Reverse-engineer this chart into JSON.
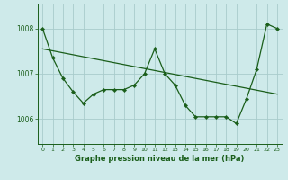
{
  "xlabel": "Graphe pression niveau de la mer (hPa)",
  "background_color": "#ceeaea",
  "grid_color": "#a8cccc",
  "line_color": "#1a5e1a",
  "x": [
    0,
    1,
    2,
    3,
    4,
    5,
    6,
    7,
    8,
    9,
    10,
    11,
    12,
    13,
    14,
    15,
    16,
    17,
    18,
    19,
    20,
    21,
    22,
    23
  ],
  "y": [
    1008.0,
    1007.35,
    1006.9,
    1006.6,
    1006.35,
    1006.55,
    1006.65,
    1006.65,
    1006.65,
    1006.75,
    1007.0,
    1007.55,
    1007.0,
    1006.75,
    1006.3,
    1006.05,
    1006.05,
    1006.05,
    1006.05,
    1005.9,
    1006.45,
    1007.1,
    1008.1,
    1008.0
  ],
  "trend_x": [
    0,
    23
  ],
  "trend_y": [
    1007.55,
    1006.55
  ],
  "ylim_min": 1005.45,
  "ylim_max": 1008.55,
  "ytick_positions": [
    1006,
    1007,
    1008
  ],
  "ytick_labels": [
    "1006",
    "1007",
    "1008"
  ],
  "xticks": [
    0,
    1,
    2,
    3,
    4,
    5,
    6,
    7,
    8,
    9,
    10,
    11,
    12,
    13,
    14,
    15,
    16,
    17,
    18,
    19,
    20,
    21,
    22,
    23
  ],
  "xlabel_fontsize": 6.0,
  "tick_fontsize": 4.5,
  "ytick_fontsize": 5.5
}
